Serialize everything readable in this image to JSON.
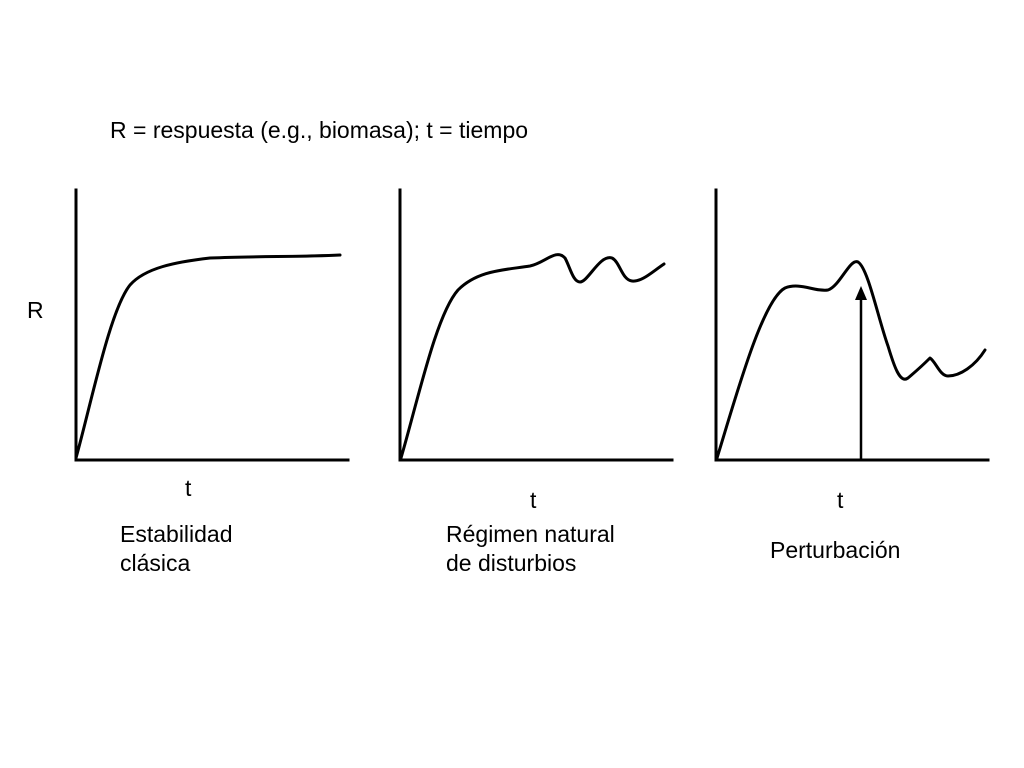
{
  "legend": "R = respuesta (e.g., biomasa); t = tiempo",
  "y_axis_label": "R",
  "panels": [
    {
      "x_axis_label": "t",
      "caption_lines": [
        "Estabilidad",
        "clásica"
      ]
    },
    {
      "x_axis_label": "t",
      "caption_lines": [
        "Régimen natural",
        "de disturbios"
      ]
    },
    {
      "x_axis_label": "t",
      "caption_lines": [
        "Perturbación"
      ]
    }
  ],
  "colors": {
    "line": "#000000",
    "background": "#ffffff"
  },
  "icons": {
    "disturbance_marker": "up-arrow-icon"
  }
}
